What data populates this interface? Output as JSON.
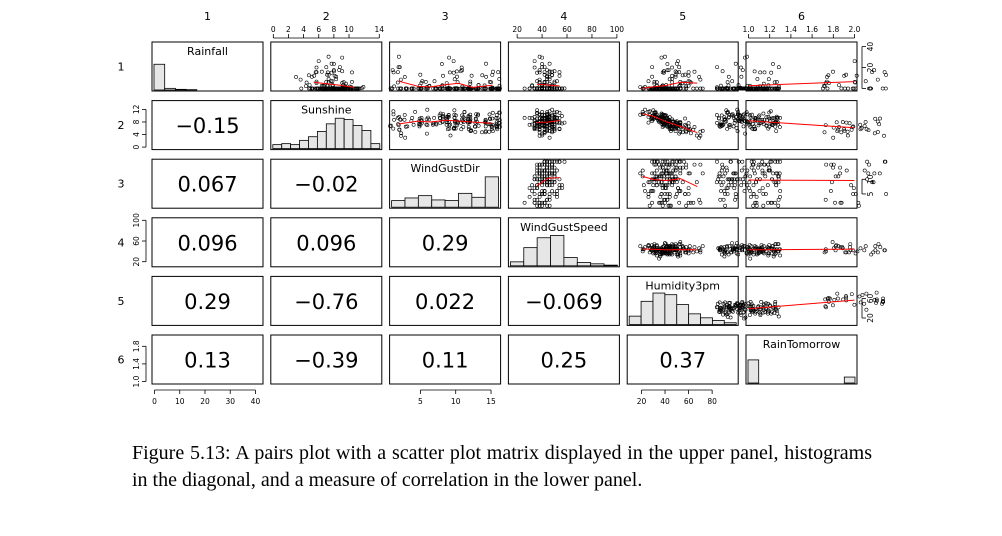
{
  "chart_data": {
    "type": "scatter-matrix",
    "variables": [
      "Rainfall",
      "Sunshine",
      "WindGustDir",
      "WindGustSpeed",
      "Humidity3pm",
      "RainTomorrow"
    ],
    "column_labels": [
      "1",
      "2",
      "3",
      "4",
      "5",
      "6"
    ],
    "row_labels": [
      "1",
      "2",
      "3",
      "4",
      "5",
      "6"
    ],
    "ranges": [
      [
        0,
        42
      ],
      [
        0,
        14
      ],
      [
        1,
        16
      ],
      [
        15,
        100
      ],
      [
        10,
        100
      ],
      [
        1,
        2
      ]
    ],
    "top_axes": [
      {
        "col": 2,
        "ticks": [
          0,
          2,
          4,
          6,
          8,
          10,
          14
        ],
        "labels": [
          "0",
          "2",
          "4",
          "6",
          "8",
          "10",
          "14"
        ]
      },
      {
        "col": 4,
        "ticks": [
          20,
          40,
          60,
          80,
          100
        ],
        "labels": [
          "20",
          "40",
          "60",
          "80",
          "100"
        ]
      },
      {
        "col": 6,
        "ticks": [
          1.0,
          1.2,
          1.4,
          1.6,
          1.8,
          2.0
        ],
        "labels": [
          "1.0",
          "1.2",
          "1.4",
          "1.6",
          "1.8",
          "2.0"
        ]
      }
    ],
    "bottom_axes": [
      {
        "col": 1,
        "ticks": [
          0,
          10,
          20,
          30,
          40
        ],
        "labels": [
          "0",
          "10",
          "20",
          "30",
          "40"
        ]
      },
      {
        "col": 3,
        "ticks": [
          5,
          10,
          15
        ],
        "labels": [
          "5",
          "10",
          "15"
        ]
      },
      {
        "col": 5,
        "ticks": [
          20,
          40,
          60,
          80
        ],
        "labels": [
          "20",
          "40",
          "60",
          "80"
        ]
      }
    ],
    "left_axes": [
      {
        "row": 2,
        "ticks": [
          0,
          4,
          8,
          12
        ],
        "labels": [
          "0",
          "4",
          "8",
          "12"
        ]
      },
      {
        "row": 4,
        "ticks": [
          20,
          60,
          100
        ],
        "labels": [
          "20",
          "60",
          "100"
        ]
      },
      {
        "row": 6,
        "ticks": [
          1.0,
          1.4,
          1.8
        ],
        "labels": [
          "1.0",
          "1.4",
          "1.8"
        ]
      }
    ],
    "right_axes": [
      {
        "row": 1,
        "ticks": [
          0,
          20,
          40
        ],
        "labels": [
          "0",
          "20",
          "40"
        ]
      },
      {
        "row": 3,
        "ticks": [
          5,
          10
        ],
        "labels": [
          "5",
          "10"
        ]
      },
      {
        "row": 5,
        "ticks": [
          20,
          60
        ],
        "labels": [
          "20",
          "60"
        ]
      }
    ],
    "histograms": [
      [
        0.78,
        0.05,
        0.02,
        0.01,
        0,
        0,
        0,
        0,
        0,
        0
      ],
      [
        0.12,
        0.15,
        0.12,
        0.25,
        0.36,
        0.52,
        0.75,
        0.92,
        0.88,
        0.7,
        0.55,
        0.15
      ],
      [
        0.2,
        0.28,
        0.35,
        0.22,
        0.2,
        0.42,
        0.3,
        0.92
      ],
      [
        0.12,
        0.55,
        0.85,
        0.92,
        0.25,
        0.1,
        0.06,
        0.02
      ],
      [
        0.25,
        0.7,
        0.95,
        0.9,
        0.6,
        0.32,
        0.2,
        0.12,
        0.05
      ],
      [
        0.7,
        0,
        0,
        0,
        0,
        0,
        0,
        0,
        0,
        0.18
      ]
    ],
    "correlations": [
      {
        "row": 2,
        "col": 1,
        "value": "−0.15"
      },
      {
        "row": 3,
        "col": 1,
        "value": "0.067"
      },
      {
        "row": 3,
        "col": 2,
        "value": "−0.02"
      },
      {
        "row": 4,
        "col": 1,
        "value": "0.096"
      },
      {
        "row": 4,
        "col": 2,
        "value": "0.096"
      },
      {
        "row": 4,
        "col": 3,
        "value": "0.29"
      },
      {
        "row": 5,
        "col": 1,
        "value": "0.29"
      },
      {
        "row": 5,
        "col": 2,
        "value": "−0.76"
      },
      {
        "row": 5,
        "col": 3,
        "value": "0.022"
      },
      {
        "row": 5,
        "col": 4,
        "value": "−0.069"
      },
      {
        "row": 6,
        "col": 1,
        "value": "0.13"
      },
      {
        "row": 6,
        "col": 2,
        "value": "−0.39"
      },
      {
        "row": 6,
        "col": 3,
        "value": "0.11"
      },
      {
        "row": 6,
        "col": 4,
        "value": "0.25"
      },
      {
        "row": 6,
        "col": 5,
        "value": "0.37"
      }
    ],
    "colors": {
      "points": "#000000",
      "smooth_line": "#ff0000",
      "hist_fill": "#e6e6e6",
      "frame": "#000000"
    }
  },
  "caption": "Figure 5.13: A pairs plot with a scatter plot matrix displayed in the upper panel, histograms in the diagonal, and a measure of correlation in the lower panel."
}
